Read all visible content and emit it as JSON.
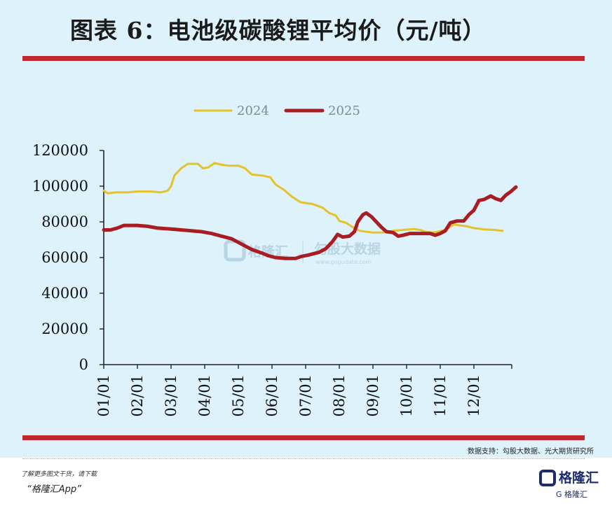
{
  "title": "图表 6：电池级碳酸锂平均价（元/吨）",
  "source": "数据支持：勾股大数据、光大期货研究所",
  "promo": {
    "line1": "了解更多图文干货，请下载",
    "line2": "“格隆汇App”"
  },
  "brand": {
    "name": "格隆汇",
    "sub": "G 格隆汇"
  },
  "watermark": {
    "left": "格隆汇",
    "right": "勾股大数据",
    "url": "www.gogudata.com"
  },
  "colors": {
    "s2024": "#e6c22a",
    "s2025": "#a81c22",
    "accent": "#c0282d"
  },
  "chart_data": {
    "type": "line",
    "title": "",
    "xlabel": "",
    "ylabel": "",
    "ylim": [
      0,
      120000
    ],
    "yticks": [
      0,
      20000,
      40000,
      60000,
      80000,
      100000,
      120000
    ],
    "xlim": [
      0,
      12
    ],
    "xtick_labels": [
      "01/01",
      "02/01",
      "03/01",
      "04/01",
      "05/01",
      "06/01",
      "07/01",
      "08/01",
      "09/01",
      "10/01",
      "11/01",
      "12/01"
    ],
    "legend": {
      "position": "top"
    },
    "grid": false,
    "series": [
      {
        "name": "2024",
        "color": "#e6c22a",
        "points": [
          [
            0.0,
            97500
          ],
          [
            0.12,
            96000
          ],
          [
            0.35,
            96500
          ],
          [
            0.7,
            96500
          ],
          [
            1.0,
            97000
          ],
          [
            1.4,
            97000
          ],
          [
            1.7,
            96500
          ],
          [
            1.9,
            97500
          ],
          [
            2.0,
            100000
          ],
          [
            2.1,
            106000
          ],
          [
            2.3,
            110000
          ],
          [
            2.5,
            112500
          ],
          [
            2.8,
            112500
          ],
          [
            2.95,
            110000
          ],
          [
            3.1,
            110500
          ],
          [
            3.3,
            113000
          ],
          [
            3.5,
            112000
          ],
          [
            3.7,
            111500
          ],
          [
            4.0,
            111500
          ],
          [
            4.2,
            110000
          ],
          [
            4.4,
            106500
          ],
          [
            4.7,
            106000
          ],
          [
            4.95,
            105000
          ],
          [
            5.1,
            101000
          ],
          [
            5.35,
            98000
          ],
          [
            5.6,
            94000
          ],
          [
            5.85,
            91000
          ],
          [
            6.2,
            90000
          ],
          [
            6.5,
            88000
          ],
          [
            6.7,
            85000
          ],
          [
            6.9,
            83500
          ],
          [
            7.0,
            80500
          ],
          [
            7.2,
            79500
          ],
          [
            7.4,
            77000
          ],
          [
            7.6,
            75000
          ],
          [
            8.0,
            74000
          ],
          [
            8.3,
            74000
          ],
          [
            8.6,
            75000
          ],
          [
            8.9,
            75500
          ],
          [
            9.2,
            76000
          ],
          [
            9.4,
            75500
          ],
          [
            9.55,
            74500
          ],
          [
            9.75,
            74000
          ],
          [
            9.95,
            74500
          ],
          [
            10.2,
            76000
          ],
          [
            10.4,
            78500
          ],
          [
            10.6,
            78000
          ],
          [
            10.8,
            77500
          ],
          [
            11.0,
            76500
          ],
          [
            11.3,
            75800
          ],
          [
            11.6,
            75500
          ],
          [
            11.85,
            75000
          ]
        ]
      },
      {
        "name": "2025",
        "color": "#a81c22",
        "points": [
          [
            0.0,
            75500
          ],
          [
            0.2,
            75500
          ],
          [
            0.4,
            76500
          ],
          [
            0.6,
            78000
          ],
          [
            1.0,
            78000
          ],
          [
            1.3,
            77500
          ],
          [
            1.6,
            76500
          ],
          [
            2.0,
            76000
          ],
          [
            2.3,
            75500
          ],
          [
            2.6,
            75000
          ],
          [
            2.9,
            74500
          ],
          [
            3.2,
            73500
          ],
          [
            3.5,
            72000
          ],
          [
            3.8,
            70500
          ],
          [
            4.0,
            68500
          ],
          [
            4.2,
            66500
          ],
          [
            4.4,
            64500
          ],
          [
            4.7,
            62500
          ],
          [
            4.9,
            61000
          ],
          [
            5.1,
            60000
          ],
          [
            5.4,
            59500
          ],
          [
            5.7,
            59500
          ],
          [
            5.85,
            60500
          ],
          [
            6.1,
            61500
          ],
          [
            6.4,
            63000
          ],
          [
            6.6,
            65000
          ],
          [
            6.8,
            69000
          ],
          [
            6.95,
            73000
          ],
          [
            7.1,
            71500
          ],
          [
            7.3,
            72000
          ],
          [
            7.45,
            74500
          ],
          [
            7.55,
            80000
          ],
          [
            7.7,
            84000
          ],
          [
            7.8,
            85000
          ],
          [
            7.95,
            83000
          ],
          [
            8.1,
            80000
          ],
          [
            8.25,
            77000
          ],
          [
            8.4,
            74500
          ],
          [
            8.6,
            74000
          ],
          [
            8.75,
            72000
          ],
          [
            8.9,
            72500
          ],
          [
            9.1,
            73500
          ],
          [
            9.4,
            73500
          ],
          [
            9.7,
            73500
          ],
          [
            9.85,
            72500
          ],
          [
            10.0,
            73500
          ],
          [
            10.15,
            75000
          ],
          [
            10.3,
            79500
          ],
          [
            10.5,
            80500
          ],
          [
            10.7,
            80500
          ],
          [
            10.85,
            84000
          ],
          [
            11.0,
            86500
          ],
          [
            11.15,
            92000
          ],
          [
            11.3,
            92500
          ],
          [
            11.5,
            94500
          ],
          [
            11.65,
            93000
          ],
          [
            11.8,
            92000
          ],
          [
            11.95,
            95000
          ],
          [
            12.1,
            97000
          ],
          [
            12.25,
            99500
          ]
        ]
      }
    ]
  }
}
